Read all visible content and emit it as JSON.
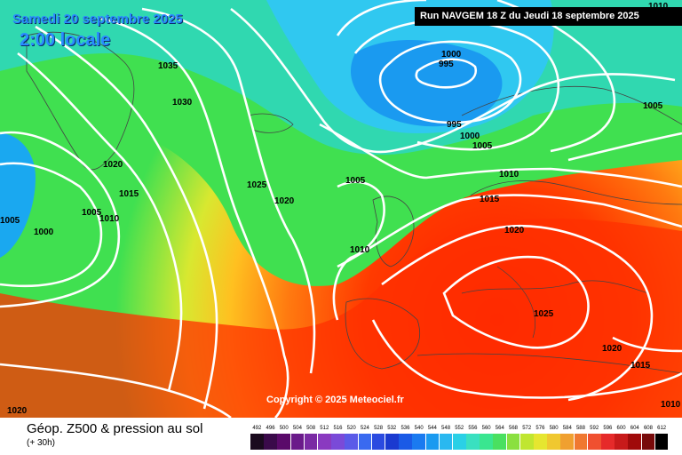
{
  "header": {
    "date": "Samedi 20 septembre 2025",
    "local_time": "2:00 locale",
    "run": "Run NAVGEM 18 Z du Jeudi 18 septembre 2025"
  },
  "footer": {
    "title": "Géop. Z500 & pression au sol",
    "subtitle": "(+ 30h)",
    "copyright": "Copyright © 2025 Meteociel.fr"
  },
  "isobar_labels": [
    {
      "text": "1010"
    },
    {
      "text": "1035"
    },
    {
      "text": "1030"
    },
    {
      "text": "1000"
    },
    {
      "text": "995"
    },
    {
      "text": "1005"
    },
    {
      "text": "995"
    },
    {
      "text": "1000"
    },
    {
      "text": "1005"
    },
    {
      "text": "1020"
    },
    {
      "text": "1015"
    },
    {
      "text": "1005"
    },
    {
      "text": "1010"
    },
    {
      "text": "1005"
    },
    {
      "text": "1000"
    },
    {
      "text": "1025"
    },
    {
      "text": "1020"
    },
    {
      "text": "1005"
    },
    {
      "text": "1010"
    },
    {
      "text": "1015"
    },
    {
      "text": "1020"
    },
    {
      "text": "1010"
    },
    {
      "text": "1025"
    },
    {
      "text": "1020"
    },
    {
      "text": "1015"
    },
    {
      "text": "1010"
    },
    {
      "text": "1020"
    }
  ],
  "legend": {
    "values": [
      "492",
      "496",
      "500",
      "504",
      "508",
      "512",
      "516",
      "520",
      "524",
      "528",
      "532",
      "536",
      "540",
      "544",
      "548",
      "552",
      "556",
      "560",
      "564",
      "568",
      "572",
      "576",
      "580",
      "584",
      "588",
      "592",
      "596",
      "600",
      "604",
      "608",
      "612"
    ],
    "colors": [
      "#1a0a1e",
      "#3a0a4a",
      "#5a0a6a",
      "#6a1a8a",
      "#7a2aa4",
      "#8a3ac0",
      "#7a4ad8",
      "#5a5ae8",
      "#3a6af0",
      "#2a4ae0",
      "#1a3ad0",
      "#1a5ae6",
      "#1a7af0",
      "#1a9af0",
      "#2ab8f0",
      "#2ad0e6",
      "#3ae0c0",
      "#3ae690",
      "#4ae060",
      "#8ae040",
      "#c0e630",
      "#e6e630",
      "#f0c830",
      "#f0a030",
      "#f07830",
      "#f05030",
      "#e62a2a",
      "#c81a1a",
      "#a00a0a",
      "#780a0a",
      "#000000"
    ]
  }
}
